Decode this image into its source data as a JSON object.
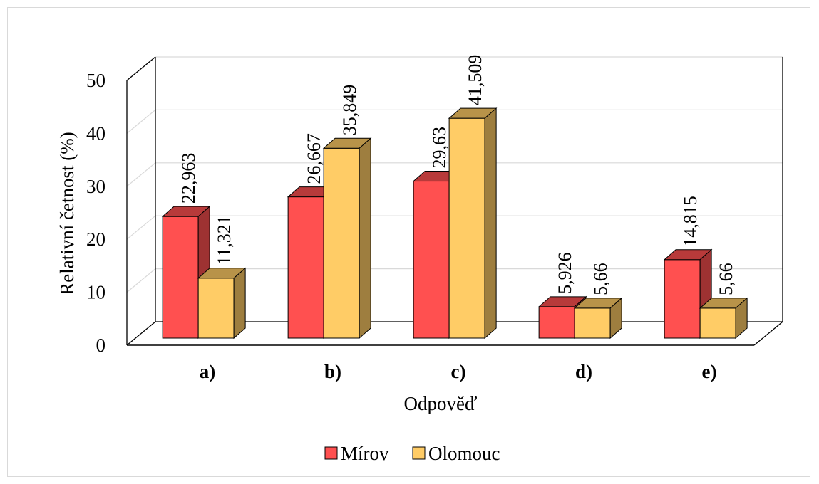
{
  "chart_data": {
    "type": "bar",
    "style": "3d-clustered-column",
    "title": "",
    "xlabel": "Odpověď",
    "ylabel": "Relativní četnost (%)",
    "ylim": [
      0,
      50
    ],
    "yticks": [
      "0",
      "10",
      "20",
      "30",
      "40",
      "50"
    ],
    "grid": true,
    "legend_position": "bottom",
    "categories": [
      "a)",
      "b)",
      "c)",
      "d)",
      "e)"
    ],
    "series": [
      {
        "name": "Mírov",
        "color": "#ff5050",
        "values": [
          22.963,
          26.667,
          29.63,
          5.926,
          14.815
        ],
        "labels": [
          "22,963",
          "26,667",
          "29,63",
          "5,926",
          "14,815"
        ]
      },
      {
        "name": "Olomouc",
        "color": "#ffcc66",
        "values": [
          11.321,
          35.849,
          41.509,
          5.66,
          5.66
        ],
        "labels": [
          "11,321",
          "35,849",
          "41,509",
          "5,66",
          "5,66"
        ]
      }
    ]
  }
}
